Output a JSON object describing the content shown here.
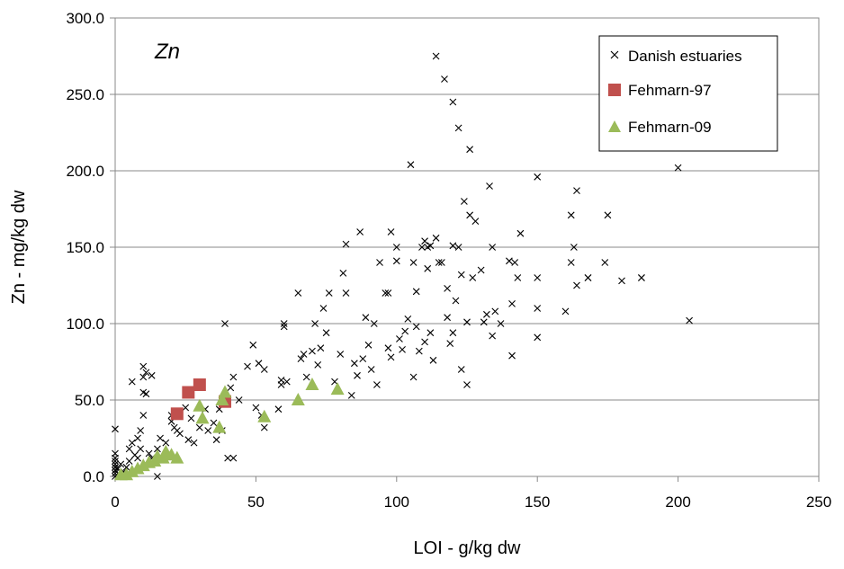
{
  "chart_data": {
    "type": "scatter",
    "title": "Zn",
    "xlabel": "LOI - g/kg dw",
    "ylabel": "Zn - mg/kg dw",
    "xlim": [
      0,
      250
    ],
    "ylim": [
      0,
      300
    ],
    "x_ticks": [
      "0",
      "50",
      "100",
      "150",
      "200",
      "250"
    ],
    "y_ticks": [
      "0.0",
      "50.0",
      "100.0",
      "150.0",
      "200.0",
      "250.0",
      "300.0"
    ],
    "grid": "horizontal",
    "legend_position": "top-right",
    "series": [
      {
        "name": "Danish estuaries",
        "marker": "cross",
        "color": "#000000",
        "points": [
          [
            0,
            0
          ],
          [
            0,
            2
          ],
          [
            0,
            4
          ],
          [
            0,
            6
          ],
          [
            0,
            8
          ],
          [
            0,
            10
          ],
          [
            0,
            12
          ],
          [
            0,
            15
          ],
          [
            0,
            31
          ],
          [
            1,
            2
          ],
          [
            1,
            5
          ],
          [
            2,
            8
          ],
          [
            3,
            3
          ],
          [
            4,
            6
          ],
          [
            5,
            10
          ],
          [
            5,
            18
          ],
          [
            6,
            22
          ],
          [
            6,
            62
          ],
          [
            7,
            14
          ],
          [
            8,
            12
          ],
          [
            8,
            25
          ],
          [
            9,
            18
          ],
          [
            9,
            30
          ],
          [
            10,
            40
          ],
          [
            10,
            55
          ],
          [
            10,
            65
          ],
          [
            10,
            72
          ],
          [
            11,
            54
          ],
          [
            11,
            68
          ],
          [
            12,
            15
          ],
          [
            13,
            12
          ],
          [
            13,
            66
          ],
          [
            14,
            10
          ],
          [
            15,
            0
          ],
          [
            15,
            18
          ],
          [
            16,
            25
          ],
          [
            18,
            22
          ],
          [
            20,
            36
          ],
          [
            20,
            40
          ],
          [
            21,
            32
          ],
          [
            22,
            30
          ],
          [
            23,
            28
          ],
          [
            25,
            45
          ],
          [
            26,
            24
          ],
          [
            27,
            38
          ],
          [
            28,
            22
          ],
          [
            30,
            32
          ],
          [
            32,
            44
          ],
          [
            33,
            30
          ],
          [
            35,
            35
          ],
          [
            36,
            24
          ],
          [
            37,
            44
          ],
          [
            38,
            30
          ],
          [
            39,
            100
          ],
          [
            40,
            12
          ],
          [
            41,
            58
          ],
          [
            42,
            12
          ],
          [
            42,
            65
          ],
          [
            44,
            50
          ],
          [
            47,
            72
          ],
          [
            49,
            86
          ],
          [
            50,
            45
          ],
          [
            51,
            74
          ],
          [
            52,
            40
          ],
          [
            53,
            32
          ],
          [
            53,
            70
          ],
          [
            58,
            44
          ],
          [
            59,
            60
          ],
          [
            59,
            63
          ],
          [
            60,
            98
          ],
          [
            60,
            100
          ],
          [
            61,
            62
          ],
          [
            65,
            120
          ],
          [
            66,
            77
          ],
          [
            67,
            80
          ],
          [
            68,
            65
          ],
          [
            70,
            82
          ],
          [
            71,
            100
          ],
          [
            72,
            73
          ],
          [
            73,
            84
          ],
          [
            74,
            110
          ],
          [
            75,
            94
          ],
          [
            76,
            120
          ],
          [
            78,
            62
          ],
          [
            80,
            80
          ],
          [
            81,
            133
          ],
          [
            82,
            152
          ],
          [
            82,
            120
          ],
          [
            84,
            53
          ],
          [
            85,
            74
          ],
          [
            86,
            66
          ],
          [
            87,
            160
          ],
          [
            88,
            77
          ],
          [
            89,
            104
          ],
          [
            90,
            86
          ],
          [
            91,
            70
          ],
          [
            92,
            100
          ],
          [
            93,
            60
          ],
          [
            94,
            140
          ],
          [
            96,
            120
          ],
          [
            97,
            120
          ],
          [
            97,
            84
          ],
          [
            98,
            160
          ],
          [
            98,
            78
          ],
          [
            100,
            150
          ],
          [
            100,
            141
          ],
          [
            101,
            90
          ],
          [
            102,
            83
          ],
          [
            103,
            95
          ],
          [
            104,
            103
          ],
          [
            105,
            204
          ],
          [
            106,
            65
          ],
          [
            106,
            140
          ],
          [
            107,
            121
          ],
          [
            107,
            98
          ],
          [
            108,
            82
          ],
          [
            109,
            150
          ],
          [
            110,
            154
          ],
          [
            110,
            88
          ],
          [
            111,
            150
          ],
          [
            111,
            136
          ],
          [
            112,
            94
          ],
          [
            112,
            151
          ],
          [
            113,
            76
          ],
          [
            114,
            275
          ],
          [
            114,
            156
          ],
          [
            115,
            140
          ],
          [
            116,
            140
          ],
          [
            117,
            260
          ],
          [
            118,
            104
          ],
          [
            118,
            123
          ],
          [
            119,
            87
          ],
          [
            120,
            245
          ],
          [
            120,
            151
          ],
          [
            120,
            94
          ],
          [
            121,
            115
          ],
          [
            122,
            228
          ],
          [
            122,
            150
          ],
          [
            123,
            132
          ],
          [
            123,
            70
          ],
          [
            124,
            180
          ],
          [
            125,
            101
          ],
          [
            125,
            60
          ],
          [
            126,
            214
          ],
          [
            126,
            171
          ],
          [
            127,
            130
          ],
          [
            128,
            167
          ],
          [
            130,
            135
          ],
          [
            131,
            101
          ],
          [
            132,
            106
          ],
          [
            133,
            190
          ],
          [
            134,
            150
          ],
          [
            134,
            92
          ],
          [
            135,
            108
          ],
          [
            137,
            100
          ],
          [
            140,
            141
          ],
          [
            141,
            79
          ],
          [
            141,
            113
          ],
          [
            142,
            140
          ],
          [
            143,
            130
          ],
          [
            144,
            159
          ],
          [
            150,
            196
          ],
          [
            150,
            130
          ],
          [
            150,
            110
          ],
          [
            150,
            91
          ],
          [
            160,
            108
          ],
          [
            162,
            171
          ],
          [
            162,
            140
          ],
          [
            163,
            150
          ],
          [
            164,
            187
          ],
          [
            164,
            125
          ],
          [
            168,
            130
          ],
          [
            168,
            130
          ],
          [
            174,
            140
          ],
          [
            175,
            171
          ],
          [
            180,
            128
          ],
          [
            187,
            130
          ],
          [
            187,
            130
          ],
          [
            200,
            202
          ],
          [
            204,
            102
          ]
        ]
      },
      {
        "name": "Fehmarn-97",
        "marker": "square",
        "color": "#c0504d",
        "points": [
          [
            22,
            41
          ],
          [
            26,
            55
          ],
          [
            30,
            60
          ],
          [
            39,
            49
          ]
        ]
      },
      {
        "name": "Fehmarn-09",
        "marker": "triangle",
        "color": "#9bbb59",
        "points": [
          [
            2,
            1
          ],
          [
            4,
            1
          ],
          [
            6,
            3
          ],
          [
            8,
            5
          ],
          [
            10,
            7
          ],
          [
            12,
            9
          ],
          [
            14,
            10
          ],
          [
            15,
            13
          ],
          [
            17,
            12
          ],
          [
            18,
            16
          ],
          [
            20,
            14
          ],
          [
            22,
            12
          ],
          [
            30,
            46
          ],
          [
            31,
            38
          ],
          [
            37,
            32
          ],
          [
            38,
            50
          ],
          [
            39,
            55
          ],
          [
            53,
            39
          ],
          [
            65,
            50
          ],
          [
            70,
            60
          ],
          [
            79,
            57
          ]
        ]
      }
    ]
  }
}
